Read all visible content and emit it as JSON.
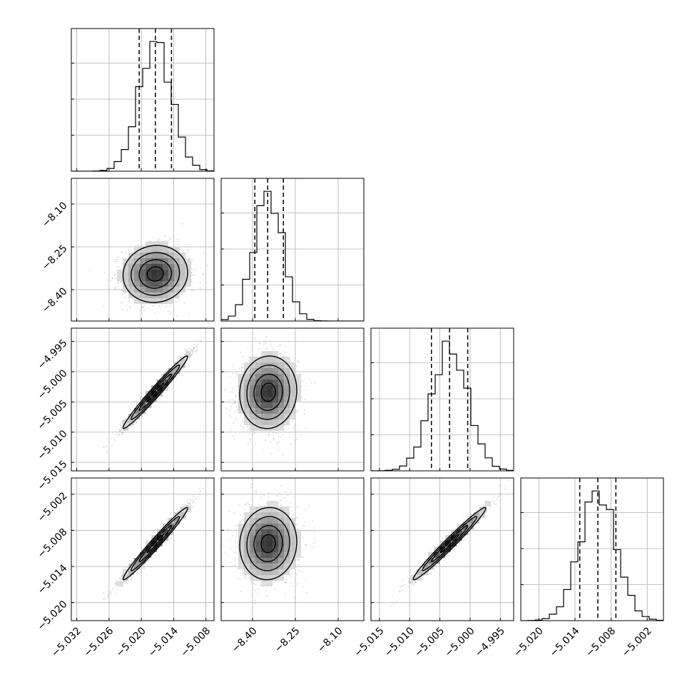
{
  "chart_data": {
    "type": "corner",
    "parameters": [
      {
        "range": [
          -5.033,
          -5.0065
        ],
        "ticks": [
          -5.032,
          -5.026,
          -5.02,
          -5.014,
          -5.008
        ],
        "tick_labels": [
          "−5.032",
          "−5.026",
          "−5.020",
          "−5.014",
          "−5.008"
        ],
        "quantiles": [
          -5.0204,
          -5.0174,
          -5.0144
        ],
        "mean": -5.0174,
        "std": 0.003
      },
      {
        "range": [
          -8.51,
          -8.01
        ],
        "ticks": [
          -8.4,
          -8.25,
          -8.1
        ],
        "tick_labels": [
          "−8.40",
          "−8.25",
          "−8.10"
        ],
        "quantiles": [
          -8.392,
          -8.347,
          -8.292
        ],
        "mean": -8.345,
        "std": 0.05
      },
      {
        "range": [
          -5.0164,
          -4.9928
        ],
        "ticks": [
          -5.015,
          -5.01,
          -5.005,
          -5.0,
          -4.995
        ],
        "tick_labels": [
          "−5.015",
          "−5.010",
          "−5.005",
          "−5.000",
          "−4.995"
        ],
        "quantiles": [
          -5.0064,
          -5.0034,
          -5.0004
        ],
        "mean": -5.0034,
        "std": 0.003
      },
      {
        "range": [
          -5.023,
          -4.9993
        ],
        "ticks": [
          -5.02,
          -5.014,
          -5.008,
          -5.002
        ],
        "tick_labels": [
          "−5.020",
          "−5.014",
          "−5.008",
          "−5.002"
        ],
        "quantiles": [
          -5.0132,
          -5.0102,
          -5.0072
        ],
        "mean": -5.0102,
        "std": 0.003
      }
    ],
    "correlations": [
      [
        1.0,
        0.05,
        0.98,
        0.98
      ],
      [
        0.05,
        1.0,
        0.05,
        0.05
      ],
      [
        0.98,
        0.05,
        1.0,
        0.98
      ],
      [
        0.98,
        0.05,
        0.98,
        1.0
      ]
    ],
    "histogram_bins": 20,
    "grid": true,
    "colors": {
      "line": "#000000",
      "points": "#8c8c8c",
      "grid": "#b0b0b0"
    }
  }
}
